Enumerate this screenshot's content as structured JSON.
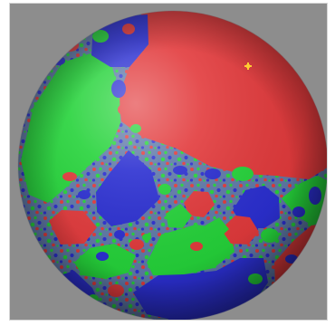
{
  "image": {
    "subject": "",
    "background_color": "#8d8d8d",
    "colors": {
      "red": "#e23a3c",
      "green": "#25d33a",
      "blue": "#2b2fd1",
      "highlight": "#ffd7d0",
      "sparkle": "#ffcc33"
    }
  }
}
